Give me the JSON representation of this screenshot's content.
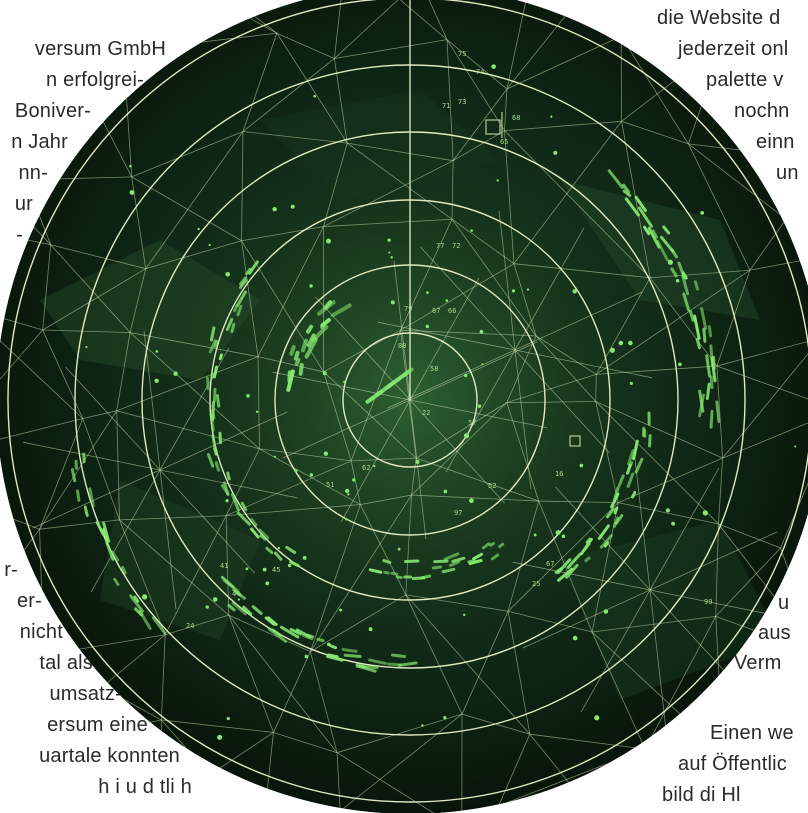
{
  "text_left": [
    "versum GmbH",
    "n erfolgrei-",
    "Boniver-",
    "n Jahr",
    "nn-",
    "ur",
    "-",
    "r-",
    "er-",
    "nicht",
    "tal als",
    "umsatz-",
    "ersum eine",
    "uartale konnten",
    "h i u d tli h"
  ],
  "text_right": [
    "die Website d",
    "jederzeit onl",
    "palette v",
    "nochn",
    "einn",
    "un",
    "u",
    "aus",
    "Verm",
    "Einen we",
    "auf Öffentlic",
    "bild di Hl"
  ],
  "radar": {
    "labels": [
      "75",
      "74",
      "71",
      "73",
      "65",
      "68",
      "77",
      "72",
      "79",
      "67",
      "66",
      "80",
      "58",
      "57",
      "22",
      "62",
      "52",
      "51",
      "41",
      "44",
      "24",
      "45",
      "97",
      "16",
      "67",
      "25",
      "99"
    ],
    "colors": {
      "screen_dark": "#061208",
      "screen_mid": "#1c3a1e",
      "ring": "#d8e7b8",
      "echo": "#7fe36b"
    }
  }
}
